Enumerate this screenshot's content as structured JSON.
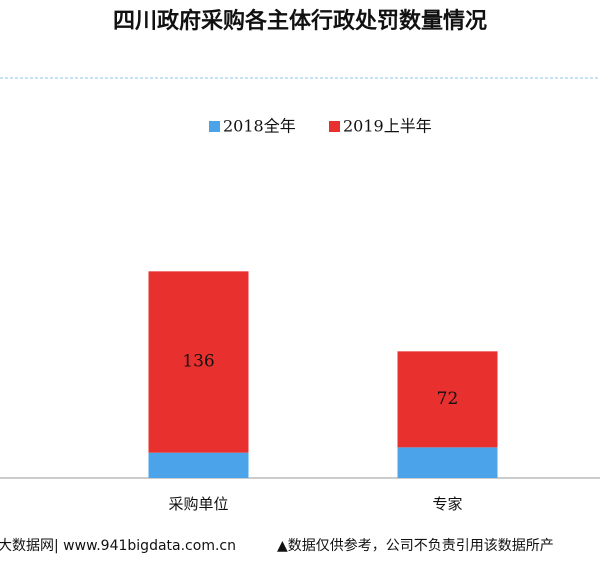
{
  "chart_data": {
    "type": "stacked-bar",
    "title": "四川政府采购各主体行政处罚数量情况",
    "categories": [
      "采购单位",
      "专家"
    ],
    "series": [
      {
        "name": "2018全年",
        "color": "#4ba3ea",
        "values": [
          19,
          23
        ]
      },
      {
        "name": "2019上半年",
        "color": "#e8302e",
        "values": [
          136,
          72
        ],
        "value_labels": [
          "136",
          "72"
        ]
      }
    ],
    "ylim": [
      0,
      300
    ],
    "legend": "top"
  },
  "footer": {
    "left": "大数据网| www.941bigdata.com.cn",
    "right": "▲数据仅供参考，公司不负责引用该数据所产"
  }
}
